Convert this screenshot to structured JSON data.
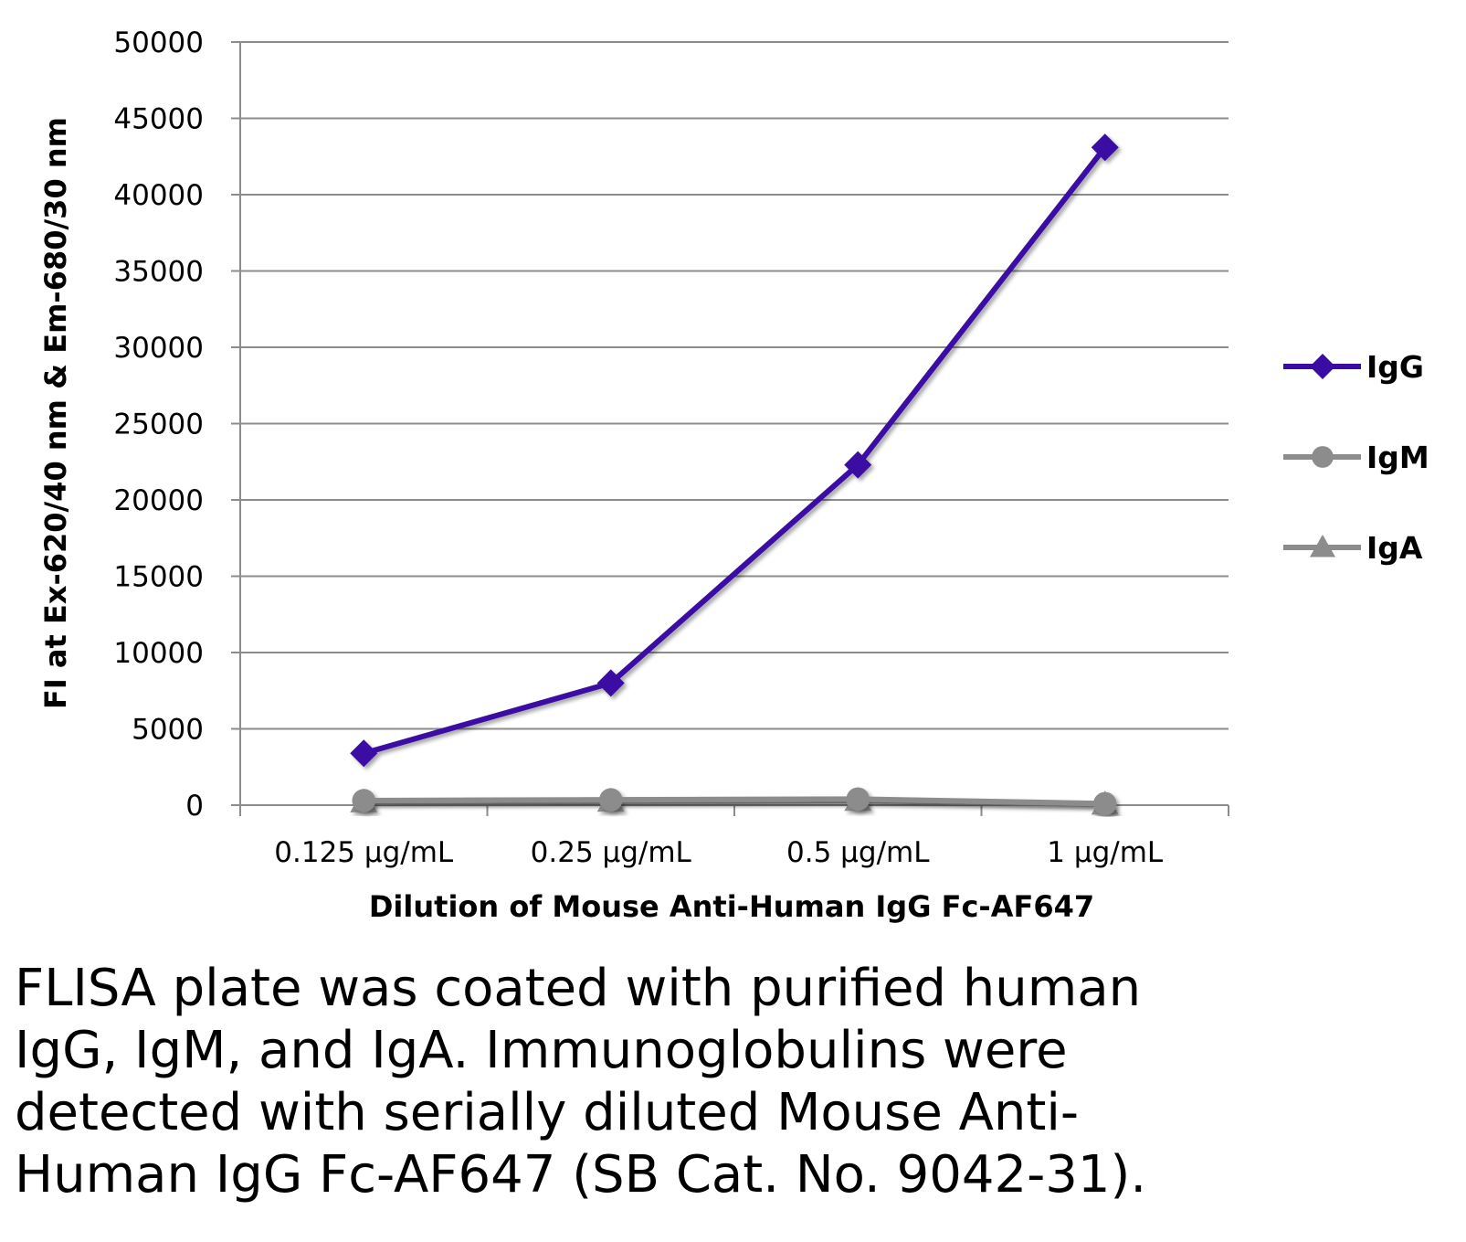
{
  "chart_data": {
    "type": "line",
    "categories": [
      "0.125 µg/mL",
      "0.25 µg/mL",
      "0.5 µg/mL",
      "1 µg/mL"
    ],
    "series": [
      {
        "name": "IgG",
        "values": [
          3400,
          8000,
          22300,
          43100
        ],
        "color": "#3a0ca3",
        "marker": "diamond"
      },
      {
        "name": "IgM",
        "values": [
          300,
          350,
          400,
          100
        ],
        "color": "#8c8c8c",
        "marker": "circle"
      },
      {
        "name": "IgA",
        "values": [
          200,
          250,
          300,
          50
        ],
        "color": "#8c8c8c",
        "marker": "triangle"
      }
    ],
    "xlabel": "Dilution of Mouse Anti-Human IgG Fc-AF647",
    "ylabel": "FI at Ex-620/40 nm & Em-680/30 nm",
    "ylim": [
      0,
      50000
    ],
    "yticks": [
      0,
      5000,
      10000,
      15000,
      20000,
      25000,
      30000,
      35000,
      40000,
      45000,
      50000
    ],
    "grid": true,
    "legend": "right"
  },
  "caption_lines": [
    "FLISA plate was coated with purified human",
    "IgG, IgM, and IgA.  Immunoglobulins were",
    "detected with serially diluted Mouse Anti-",
    "Human IgG Fc-AF647 (SB Cat. No. 9042-31)."
  ]
}
